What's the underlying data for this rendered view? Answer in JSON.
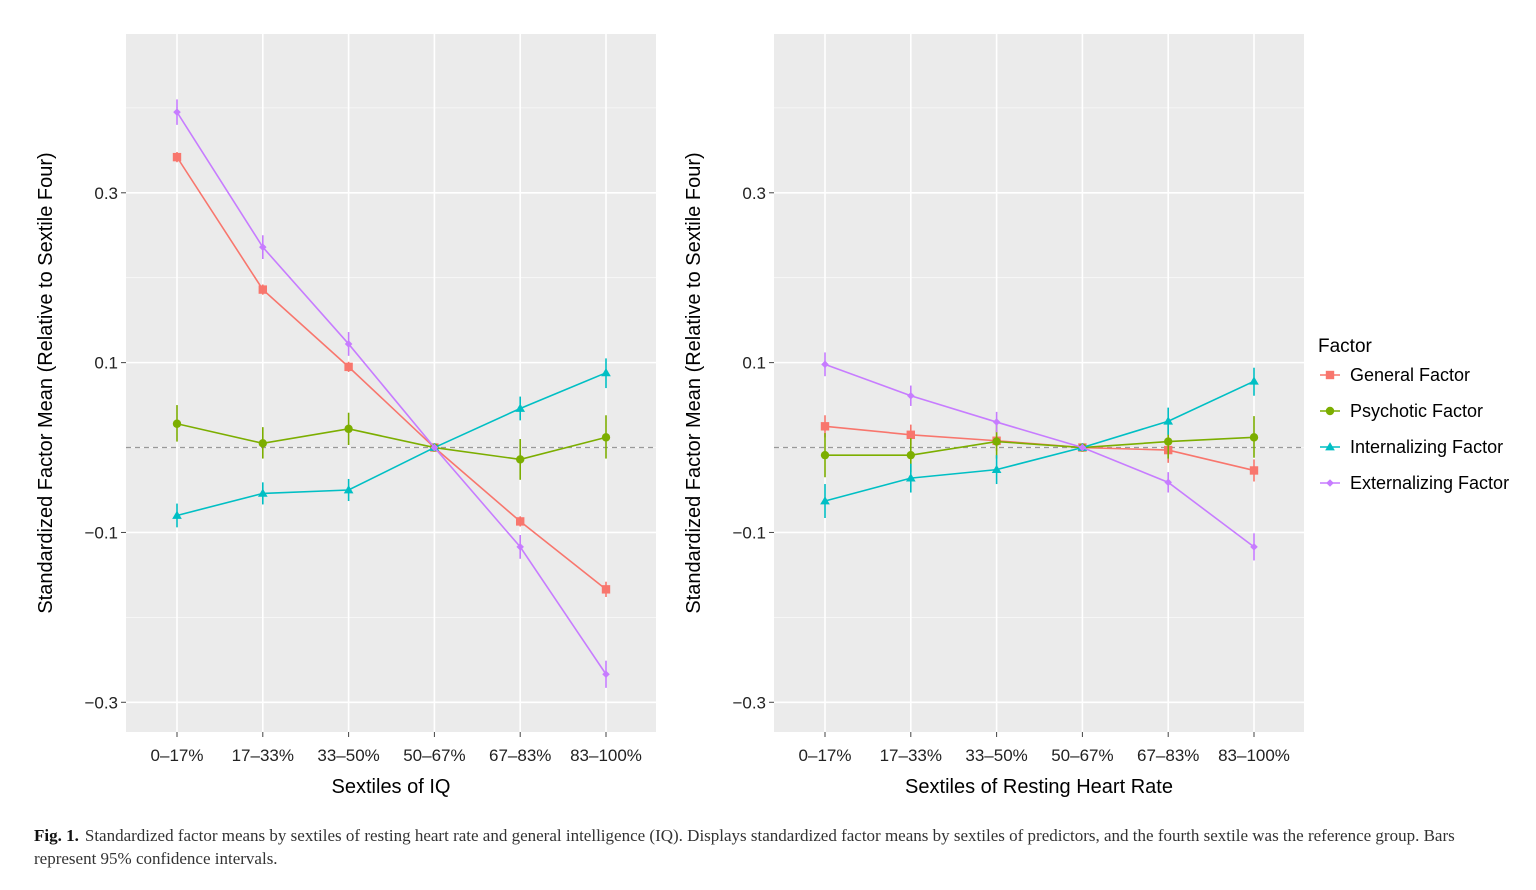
{
  "chart_data": [
    {
      "type": "line",
      "xlabel": "Sextiles of IQ",
      "ylabel": "Standardized Factor Mean (Relative to Sextile Four)",
      "categories": [
        "0–17%",
        "17–33%",
        "33–50%",
        "50–67%",
        "67–83%",
        "83–100%"
      ],
      "ylim": [
        -0.335,
        0.487
      ],
      "yticks": [
        -0.3,
        -0.1,
        0.1,
        0.3
      ],
      "ytick_labels": [
        "−0.3",
        "−0.1",
        "0.1",
        "0.3"
      ],
      "reference_line": 0,
      "grid": true,
      "series": [
        {
          "name": "General Factor",
          "values": [
            0.342,
            0.186,
            0.095,
            0.0,
            -0.087,
            -0.167
          ],
          "ci": [
            [
              0.336,
              0.348
            ],
            [
              0.18,
              0.192
            ],
            [
              0.089,
              0.101
            ],
            [
              0.0,
              0.0
            ],
            [
              -0.093,
              -0.081
            ],
            [
              -0.176,
              -0.158
            ]
          ]
        },
        {
          "name": "Psychotic Factor",
          "values": [
            0.028,
            0.005,
            0.022,
            0.0,
            -0.014,
            0.012
          ],
          "ci": [
            [
              0.007,
              0.05
            ],
            [
              -0.013,
              0.024
            ],
            [
              0.003,
              0.041
            ],
            [
              0.0,
              0.0
            ],
            [
              -0.038,
              0.01
            ],
            [
              -0.013,
              0.038
            ]
          ]
        },
        {
          "name": "Internalizing Factor",
          "values": [
            -0.08,
            -0.054,
            -0.05,
            0.0,
            0.046,
            0.088
          ],
          "ci": [
            [
              -0.094,
              -0.066
            ],
            [
              -0.067,
              -0.041
            ],
            [
              -0.063,
              -0.037
            ],
            [
              0.0,
              0.0
            ],
            [
              0.032,
              0.06
            ],
            [
              0.07,
              0.105
            ]
          ]
        },
        {
          "name": "Externalizing Factor",
          "values": [
            0.395,
            0.236,
            0.122,
            0.0,
            -0.117,
            -0.267
          ],
          "ci": [
            [
              0.38,
              0.41
            ],
            [
              0.222,
              0.25
            ],
            [
              0.108,
              0.136
            ],
            [
              0.0,
              0.0
            ],
            [
              -0.131,
              -0.103
            ],
            [
              -0.283,
              -0.251
            ]
          ]
        }
      ]
    },
    {
      "type": "line",
      "xlabel": "Sextiles of Resting Heart Rate",
      "ylabel": "Standardized Factor Mean (Relative to Sextile Four)",
      "categories": [
        "0–17%",
        "17–33%",
        "33–50%",
        "50–67%",
        "67–83%",
        "83–100%"
      ],
      "ylim": [
        -0.335,
        0.487
      ],
      "yticks": [
        -0.3,
        -0.1,
        0.1,
        0.3
      ],
      "ytick_labels": [
        "−0.3",
        "−0.1",
        "0.1",
        "0.3"
      ],
      "reference_line": 0,
      "grid": true,
      "series": [
        {
          "name": "General Factor",
          "values": [
            0.025,
            0.015,
            0.008,
            0.0,
            -0.003,
            -0.027
          ],
          "ci": [
            [
              0.012,
              0.038
            ],
            [
              0.003,
              0.027
            ],
            [
              -0.004,
              0.02
            ],
            [
              0.0,
              0.0
            ],
            [
              -0.018,
              0.012
            ],
            [
              -0.04,
              -0.014
            ]
          ]
        },
        {
          "name": "Psychotic Factor",
          "values": [
            -0.009,
            -0.009,
            0.007,
            0.0,
            0.007,
            0.012
          ],
          "ci": [
            [
              -0.035,
              0.017
            ],
            [
              -0.029,
              0.011
            ],
            [
              -0.013,
              0.027
            ],
            [
              0.0,
              0.0
            ],
            [
              -0.013,
              0.027
            ],
            [
              -0.012,
              0.037
            ]
          ]
        },
        {
          "name": "Internalizing Factor",
          "values": [
            -0.063,
            -0.036,
            -0.026,
            0.0,
            0.031,
            0.078
          ],
          "ci": [
            [
              -0.083,
              -0.043
            ],
            [
              -0.053,
              -0.019
            ],
            [
              -0.043,
              -0.009
            ],
            [
              0.0,
              0.0
            ],
            [
              0.015,
              0.047
            ],
            [
              0.061,
              0.094
            ]
          ]
        },
        {
          "name": "Externalizing Factor",
          "values": [
            0.098,
            0.061,
            0.03,
            0.0,
            -0.041,
            -0.117
          ],
          "ci": [
            [
              0.084,
              0.112
            ],
            [
              0.049,
              0.073
            ],
            [
              0.018,
              0.042
            ],
            [
              0.0,
              0.0
            ],
            [
              -0.053,
              -0.029
            ],
            [
              -0.133,
              -0.101
            ]
          ]
        }
      ]
    }
  ],
  "legend": {
    "title": "Factor",
    "items": [
      {
        "name": "General Factor",
        "color": "#F8766D",
        "marker": "square"
      },
      {
        "name": "Psychotic Factor",
        "color": "#7CAE00",
        "marker": "circle"
      },
      {
        "name": "Internalizing Factor",
        "color": "#00BFC4",
        "marker": "triangle"
      },
      {
        "name": "Externalizing Factor",
        "color": "#C77CFF",
        "marker": "diamond"
      }
    ]
  },
  "colors": {
    "panel_background": "#EBEBEB",
    "grid": "#FFFFFF",
    "reference_line": "#999999"
  },
  "caption": {
    "label": "Fig. 1.",
    "text": "Standardized factor means by sextiles of resting heart rate and general intelligence (IQ). Displays standardized factor means by sextiles of predictors, and the fourth sextile was the reference group. Bars represent 95% confidence intervals."
  }
}
